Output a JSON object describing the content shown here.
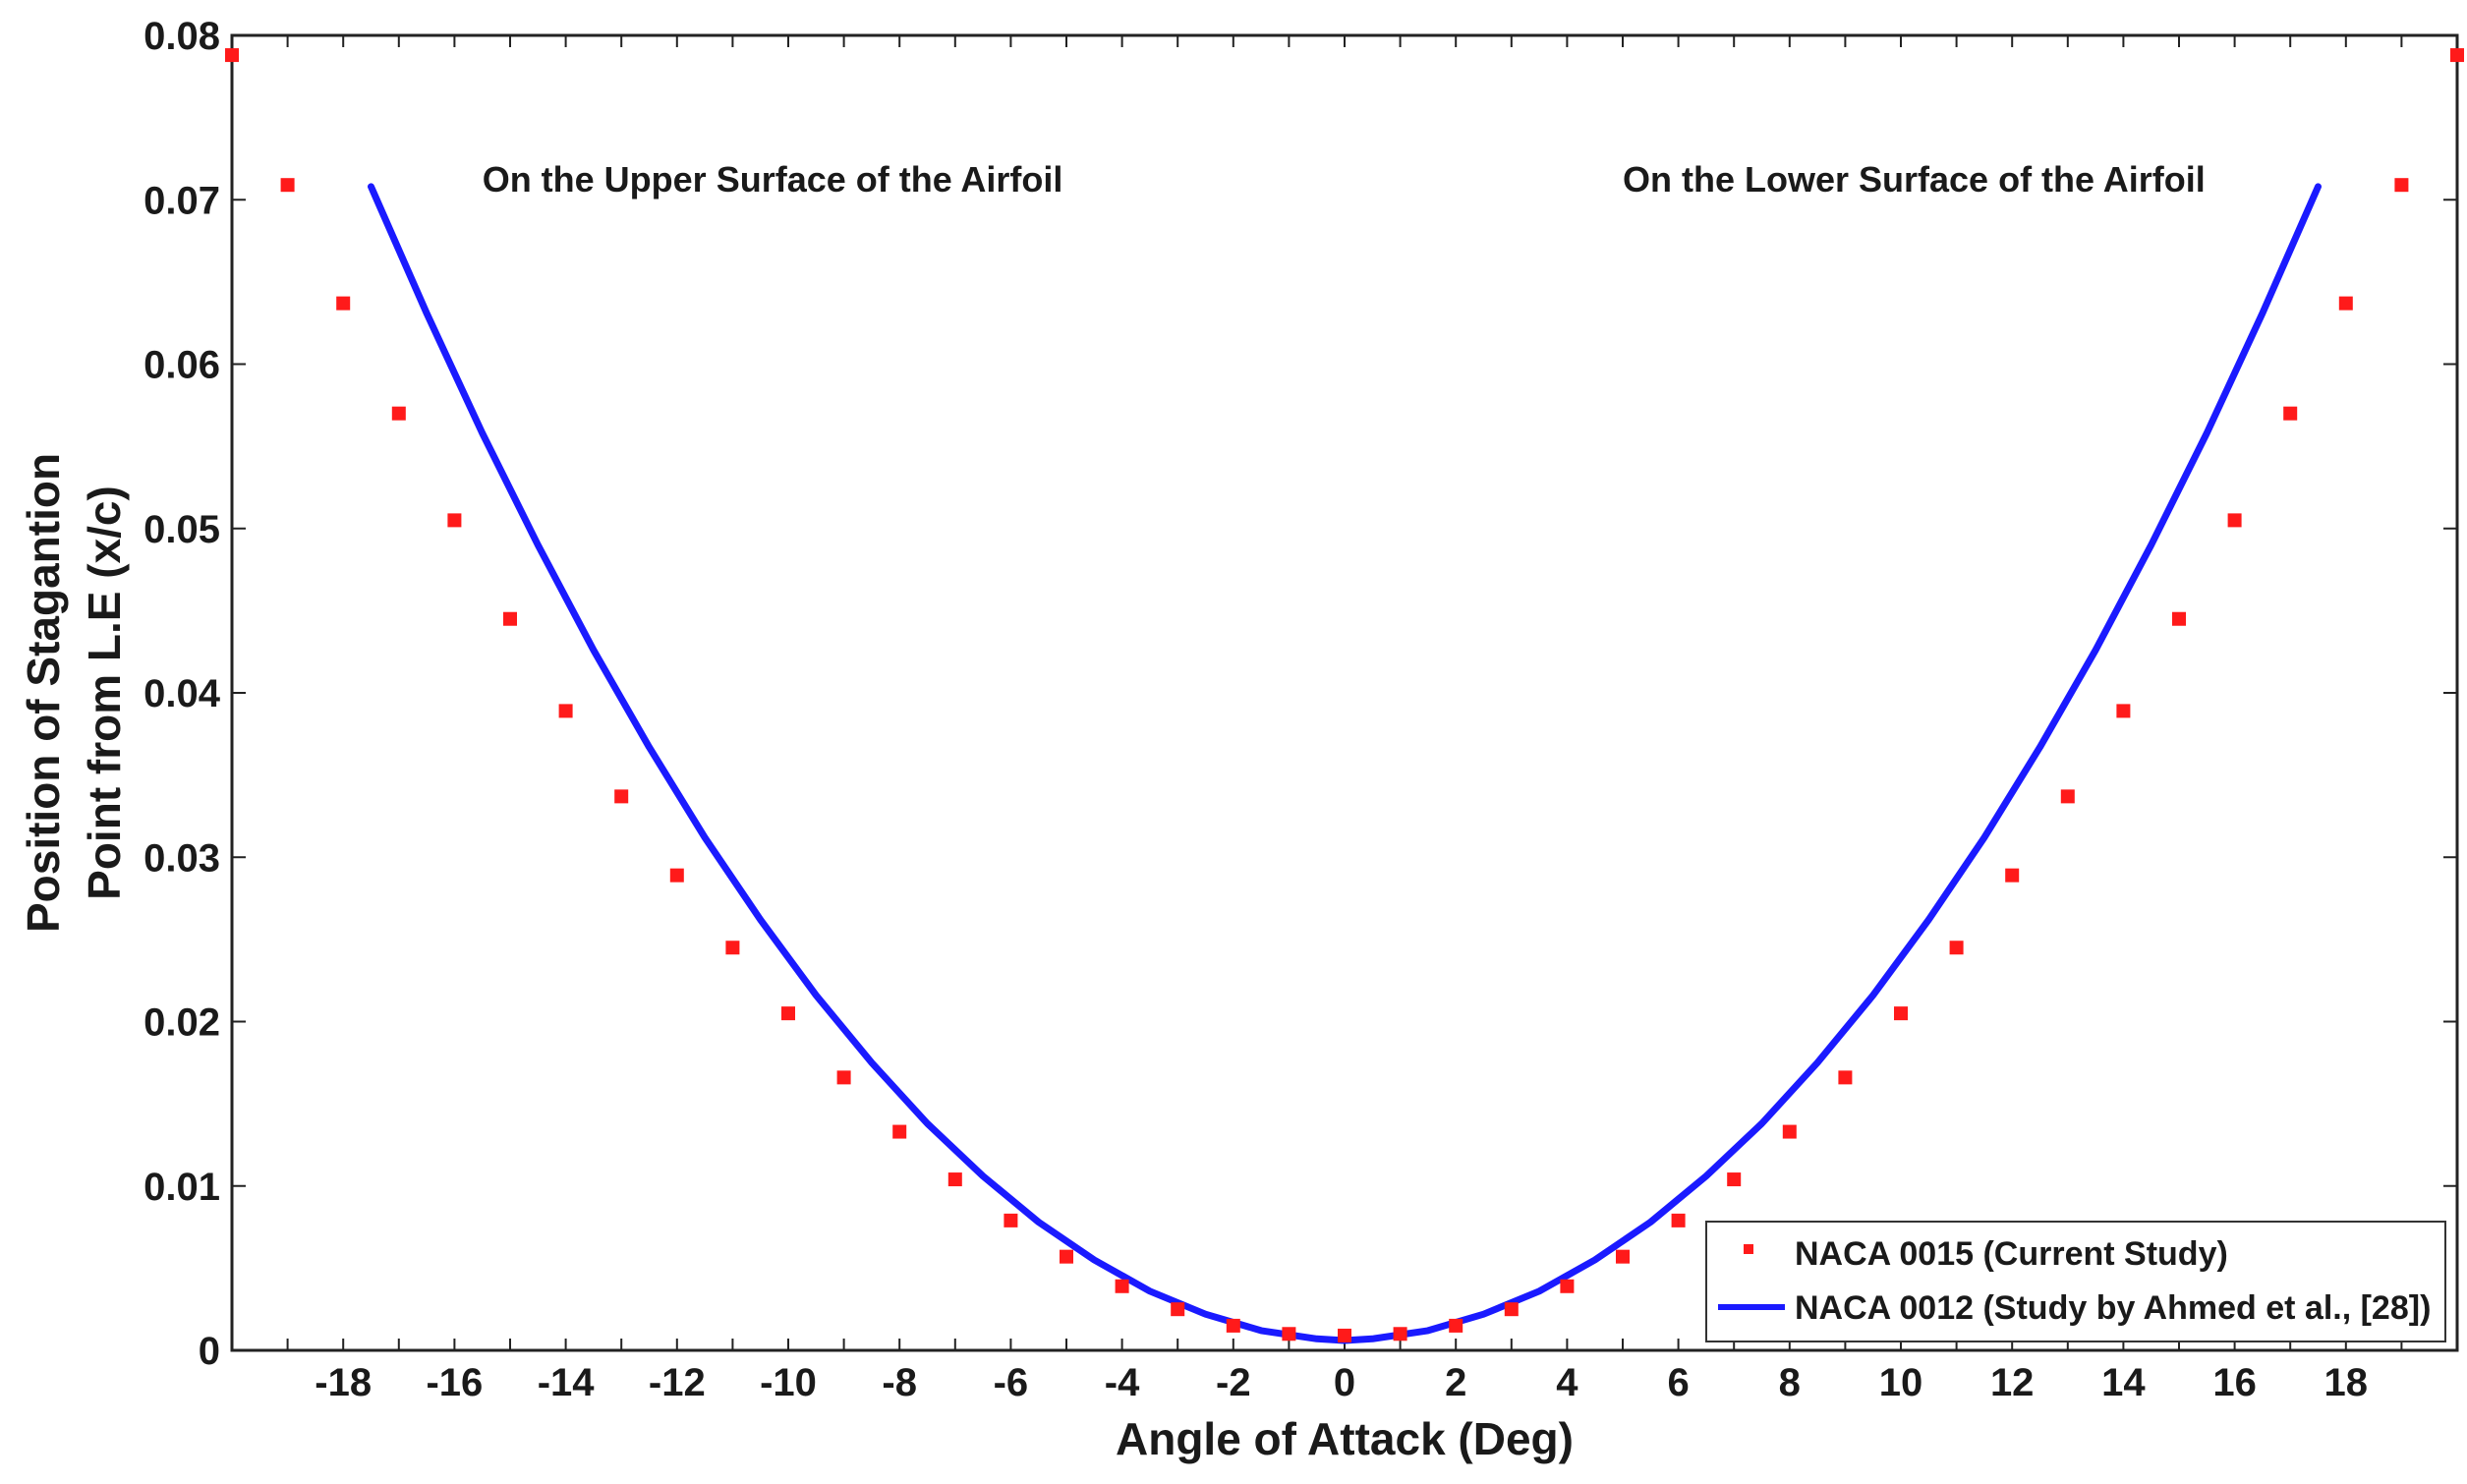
{
  "chart_data": {
    "type": "scatter",
    "title": "",
    "xlabel": "Angle of Attack (Deg)",
    "ylabel_lines": [
      "Position of Stagantion",
      "Point from L.E (x/c)"
    ],
    "xlim": [
      -20,
      20
    ],
    "ylim": [
      0,
      0.08
    ],
    "x_ticks": [
      -18,
      -16,
      -14,
      -12,
      -10,
      -8,
      -6,
      -4,
      -2,
      0,
      2,
      4,
      6,
      8,
      10,
      12,
      14,
      16,
      18
    ],
    "x_tick_labels": [
      "-18",
      "-16",
      "-14",
      "-12",
      "-10",
      "-8",
      "-6",
      "-4",
      "-2",
      "0",
      "2",
      "4",
      "6",
      "8",
      "10",
      "12",
      "14",
      "16",
      "18"
    ],
    "y_ticks": [
      0,
      0.01,
      0.02,
      0.03,
      0.04,
      0.05,
      0.06,
      0.07,
      0.08
    ],
    "y_tick_labels": [
      "0",
      "0.01",
      "0.02",
      "0.03",
      "0.04",
      "0.05",
      "0.06",
      "0.07",
      "0.08"
    ],
    "grid": false,
    "legend_position": "bottom-right",
    "annotations": [
      {
        "text": "On the Upper Surface of the Airfoil",
        "x": -15.5,
        "y": 0.0705
      },
      {
        "text": "On the Lower Surface of the Airfoil",
        "x": 5,
        "y": 0.0705
      }
    ],
    "series": [
      {
        "name": "NACA 0015 (Current Study)",
        "style": "square-markers",
        "color": "#ff1a1a",
        "x": [
          -20,
          -19,
          -18,
          -17,
          -16,
          -15,
          -14,
          -13,
          -12,
          -11,
          -10,
          -9,
          -8,
          -7,
          -6,
          -5,
          -4,
          -3,
          -2,
          -1,
          0,
          1,
          2,
          3,
          4,
          5,
          6,
          7,
          8,
          9,
          10,
          11,
          12,
          13,
          14,
          15,
          16,
          17,
          18,
          19,
          20
        ],
        "y": [
          0.0788,
          0.0709,
          0.0637,
          0.057,
          0.0505,
          0.0445,
          0.0389,
          0.0337,
          0.0289,
          0.0245,
          0.0205,
          0.0166,
          0.0133,
          0.0104,
          0.0079,
          0.0057,
          0.0039,
          0.0025,
          0.0015,
          0.001,
          0.0009,
          0.001,
          0.0015,
          0.0025,
          0.0039,
          0.0057,
          0.0079,
          0.0104,
          0.0133,
          0.0166,
          0.0205,
          0.0245,
          0.0289,
          0.0337,
          0.0389,
          0.0445,
          0.0505,
          0.057,
          0.0637,
          0.0709,
          0.0788
        ]
      },
      {
        "name": "NACA 0012 (Study by Ahmed et al., [28])",
        "style": "line",
        "color": "#1a1aff",
        "x": [
          -17.5,
          -16.5,
          -15.5,
          -14.5,
          -13.5,
          -12.5,
          -11.5,
          -10.5,
          -9.5,
          -8.5,
          -7.5,
          -6.5,
          -5.5,
          -4.5,
          -3.5,
          -2.5,
          -1.5,
          -0.5,
          0,
          0.5,
          1.5,
          2.5,
          3.5,
          4.5,
          5.5,
          6.5,
          7.5,
          8.5,
          9.5,
          10.5,
          11.5,
          12.5,
          13.5,
          14.5,
          15.5,
          16.5,
          17.5
        ],
        "y": [
          0.0708,
          0.0631,
          0.0558,
          0.049,
          0.0426,
          0.0367,
          0.0312,
          0.0262,
          0.0216,
          0.0175,
          0.0138,
          0.0106,
          0.0078,
          0.0055,
          0.0036,
          0.0022,
          0.0012,
          0.0007,
          0.0006,
          0.0007,
          0.0012,
          0.0022,
          0.0036,
          0.0055,
          0.0078,
          0.0106,
          0.0138,
          0.0175,
          0.0216,
          0.0262,
          0.0312,
          0.0367,
          0.0426,
          0.049,
          0.0558,
          0.0631,
          0.0708
        ]
      }
    ]
  }
}
